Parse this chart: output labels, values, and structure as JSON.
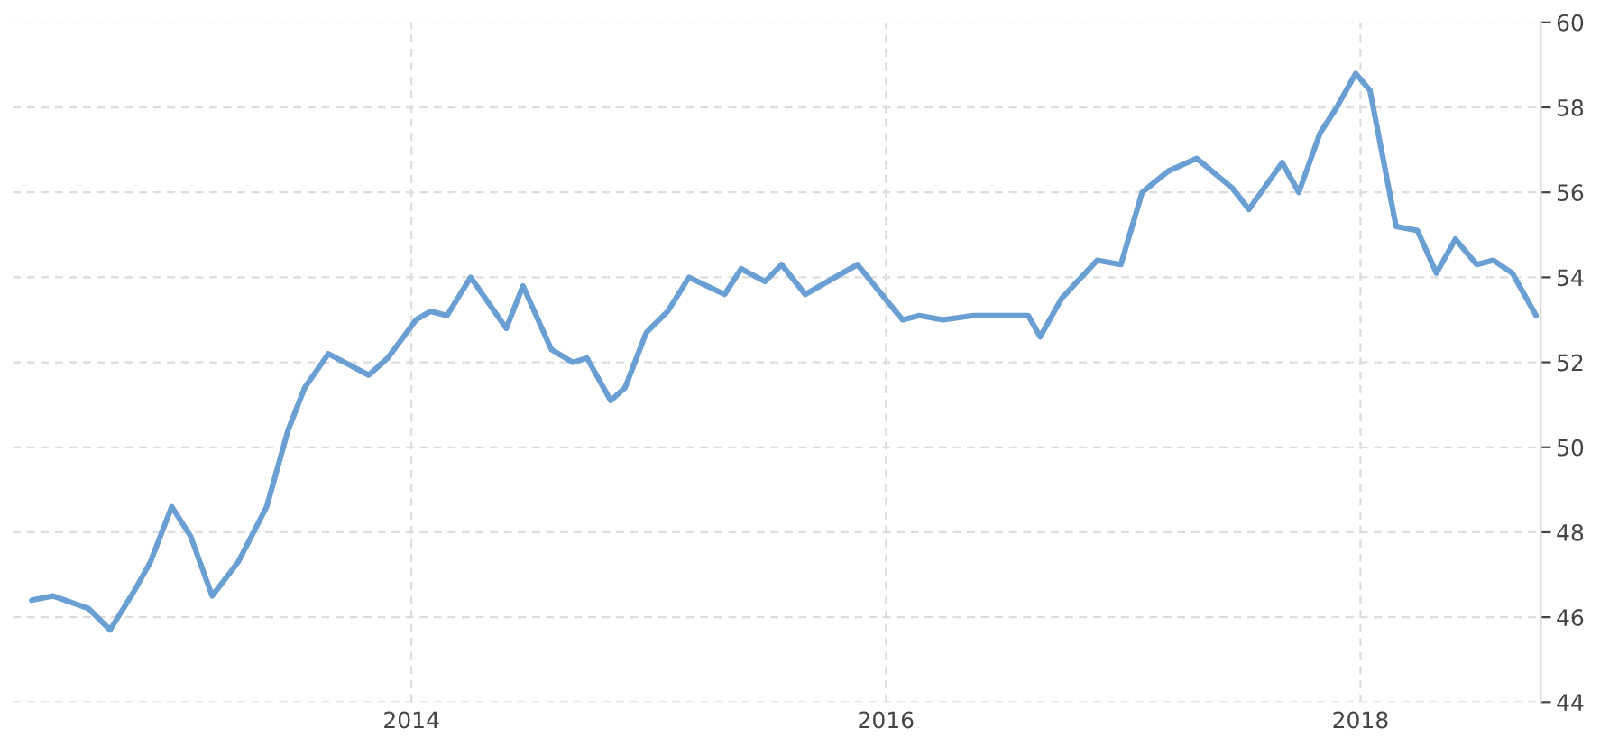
{
  "chart_data": {
    "type": "line",
    "x": [
      2012.4,
      2012.49,
      2012.64,
      2012.73,
      2012.83,
      2012.9,
      2012.99,
      2013.07,
      2013.16,
      2013.27,
      2013.39,
      2013.48,
      2013.55,
      2013.65,
      2013.82,
      2013.9,
      2014.02,
      2014.08,
      2014.15,
      2014.25,
      2014.4,
      2014.47,
      2014.59,
      2014.68,
      2014.74,
      2014.84,
      2014.9,
      2014.99,
      2015.08,
      2015.17,
      2015.32,
      2015.39,
      2015.49,
      2015.56,
      2015.66,
      2015.88,
      2016.07,
      2016.14,
      2016.24,
      2016.37,
      2016.5,
      2016.6,
      2016.65,
      2016.74,
      2016.89,
      2016.99,
      2017.08,
      2017.19,
      2017.31,
      2017.46,
      2017.53,
      2017.67,
      2017.74,
      2017.83,
      2017.9,
      2017.98,
      2018.04,
      2018.15,
      2018.24,
      2018.32,
      2018.4,
      2018.49,
      2018.56,
      2018.64,
      2018.74
    ],
    "series": [
      {
        "color": "#6a9fd3",
        "values": [
          46.4,
          46.5,
          46.2,
          45.7,
          46.6,
          47.3,
          48.6,
          47.9,
          46.5,
          47.3,
          48.6,
          50.4,
          51.4,
          52.2,
          51.7,
          52.1,
          53.0,
          53.2,
          53.1,
          54.0,
          52.8,
          53.8,
          52.3,
          52.0,
          52.1,
          51.1,
          51.4,
          52.7,
          53.2,
          54.0,
          53.6,
          54.2,
          53.9,
          54.3,
          53.6,
          54.3,
          53.0,
          53.1,
          53.0,
          53.1,
          53.1,
          53.1,
          52.6,
          53.5,
          54.4,
          54.3,
          56.0,
          56.5,
          56.8,
          56.1,
          55.6,
          56.7,
          56.0,
          57.4,
          58.0,
          58.8,
          58.4,
          55.2,
          55.1,
          54.1,
          54.9,
          54.3,
          54.4,
          54.1,
          53.1
        ]
      }
    ],
    "xlim": [
      2012.32,
      2018.76
    ],
    "xticks": [
      2014,
      2016,
      2018
    ],
    "ylim": [
      44,
      60
    ],
    "yticks": [
      44,
      46,
      48,
      50,
      52,
      54,
      56,
      58,
      60
    ],
    "grid": true,
    "line_style": "solid",
    "marker": "none"
  }
}
